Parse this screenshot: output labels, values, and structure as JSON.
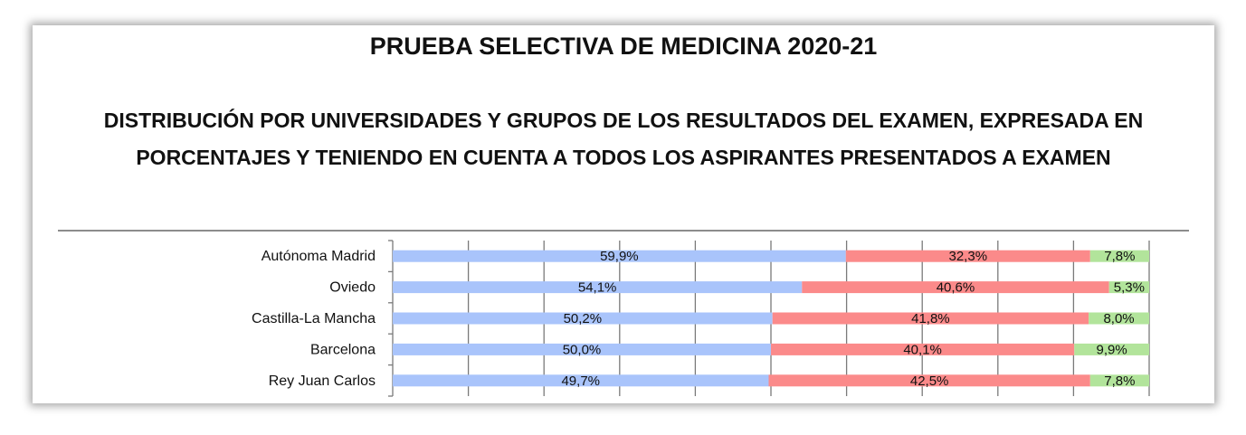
{
  "header": {
    "title": "PRUEBA SELECTIVA DE MEDICINA 2020-21",
    "subtitle_line1": "DISTRIBUCIÓN POR UNIVERSIDADES Y GRUPOS DE LOS RESULTADOS DEL EXAMEN, EXPRESADA EN",
    "subtitle_line2": "PORCENTAJES Y TENIENDO EN CUENTA A TODOS LOS ASPIRANTES PRESENTADOS A EXAMEN"
  },
  "chart_data": {
    "type": "bar",
    "orientation": "horizontal",
    "stacked": "percent",
    "categories": [
      "Autónoma Madrid",
      "Oviedo",
      "Castilla-La Mancha",
      "Barcelona",
      "Rey Juan Carlos"
    ],
    "series": [
      {
        "values": [
          59.9,
          54.1,
          50.2,
          50.0,
          49.7
        ],
        "labels": [
          "59,9%",
          "54,1%",
          "50,2%",
          "50,0%",
          "49,7%"
        ],
        "color": "#a9c4fb"
      },
      {
        "values": [
          32.3,
          40.6,
          41.8,
          40.1,
          42.5
        ],
        "labels": [
          "32,3%",
          "40,6%",
          "41,8%",
          "40,1%",
          "42,5%"
        ],
        "color": "#fb8a8a"
      },
      {
        "values": [
          7.8,
          5.3,
          8.0,
          9.9,
          7.8
        ],
        "labels": [
          "7,8%",
          "5,3%",
          "8,0%",
          "9,9%",
          "7,8%"
        ],
        "color": "#b2e49b"
      }
    ],
    "xlim": [
      0,
      100
    ],
    "grid": "vertical"
  }
}
